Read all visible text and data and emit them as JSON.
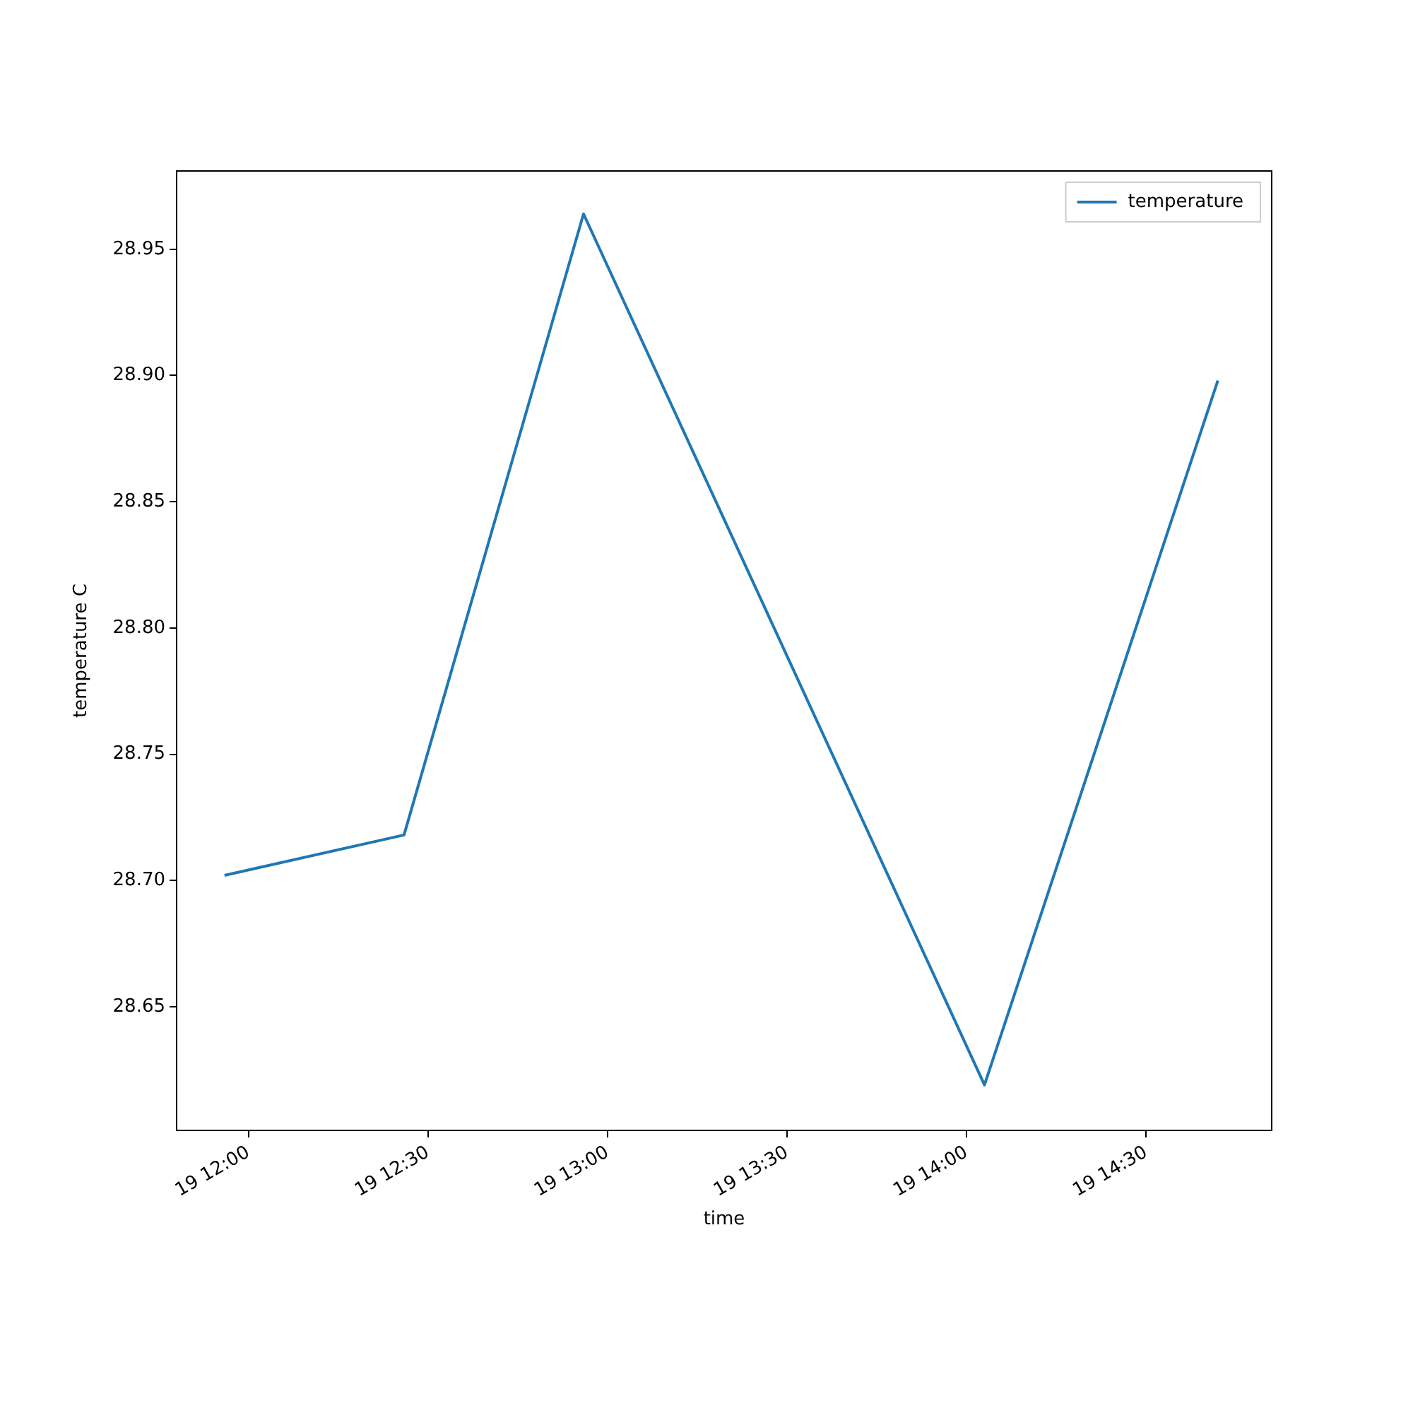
{
  "chart_data": {
    "type": "line",
    "xlabel": "time",
    "ylabel": "temperature C",
    "x": [
      "--01-19T11:56",
      "--01-19T12:26",
      "--01-19T12:56",
      "--01-19T14:03",
      "--01-19T14:42"
    ],
    "series": [
      {
        "name": "temperature",
        "color": "#1f77b4",
        "values": [
          28.702,
          28.718,
          28.964,
          28.619,
          28.898
        ]
      }
    ],
    "xlim": [
      "--01-19T11:48",
      "--01-19T14:51"
    ],
    "xticks": [
      {
        "value": "--01-19T12:00",
        "label": "19 12:00"
      },
      {
        "value": "--01-19T12:30",
        "label": "19 12:30"
      },
      {
        "value": "--01-19T13:00",
        "label": "19 13:00"
      },
      {
        "value": "--01-19T13:30",
        "label": "19 13:30"
      },
      {
        "value": "--01-19T14:00",
        "label": "19 14:00"
      },
      {
        "value": "--01-19T14:30",
        "label": "19 14:30"
      }
    ],
    "ylim": [
      28.601,
      28.981
    ],
    "yticks": [
      {
        "value": 28.65,
        "label": "28.65"
      },
      {
        "value": 28.7,
        "label": "28.70"
      },
      {
        "value": 28.75,
        "label": "28.75"
      },
      {
        "value": 28.8,
        "label": "28.80"
      },
      {
        "value": 28.85,
        "label": "28.85"
      },
      {
        "value": 28.9,
        "label": "28.90"
      },
      {
        "value": 28.95,
        "label": "28.95"
      }
    ],
    "grid": false,
    "legend": "top right",
    "marker": "none",
    "line_style": "solid"
  }
}
